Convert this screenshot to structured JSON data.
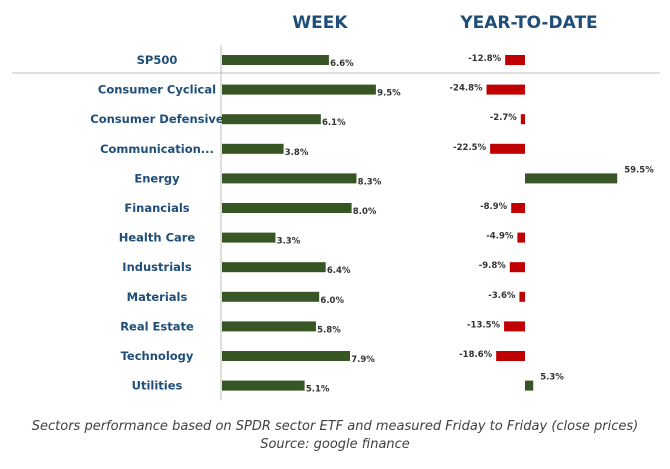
{
  "chart_data": {
    "type": "bar",
    "orientation": "horizontal",
    "categories": [
      "SP500",
      "Consumer Cyclical",
      "Consumer Defensive",
      "Communication...",
      "Energy",
      "Financials",
      "Health Care",
      "Industrials",
      "Materials",
      "Real Estate",
      "Technology",
      "Utilities"
    ],
    "series": [
      {
        "name": "WEEK",
        "values": [
          6.6,
          9.5,
          6.1,
          3.8,
          8.3,
          8.0,
          3.3,
          6.4,
          6.0,
          5.8,
          7.9,
          5.1
        ]
      },
      {
        "name": "YEAR-TO-DATE",
        "values": [
          -12.8,
          -24.8,
          -2.7,
          -22.5,
          59.5,
          -8.9,
          -4.9,
          -9.8,
          -3.6,
          -13.5,
          -18.6,
          5.3
        ]
      }
    ],
    "value_labels": {
      "week": [
        "6.6%",
        "9.5%",
        "6.1%",
        "3.8%",
        "8.3%",
        "8.0%",
        "3.3%",
        "6.4%",
        "6.0%",
        "5.8%",
        "7.9%",
        "5.1%"
      ],
      "ytd": [
        "-12.8%",
        "-24.8%",
        "-2.7%",
        "-22.5%",
        "59.5%",
        "-8.9%",
        "-4.9%",
        "-9.8%",
        "-3.6%",
        "-13.5%",
        "-18.6%",
        "5.3%"
      ]
    },
    "grid": false,
    "legend": "none"
  },
  "colors": {
    "positive": "#375623",
    "negative": "#c00000",
    "title": "#1f4e79",
    "category_label": "#1f4e79",
    "axis": "#bfbfbf"
  },
  "footer": {
    "line1": "Sectors performance based on SPDR sector ETF and measured Friday to Friday (close prices)",
    "line2": "Source: google finance"
  }
}
